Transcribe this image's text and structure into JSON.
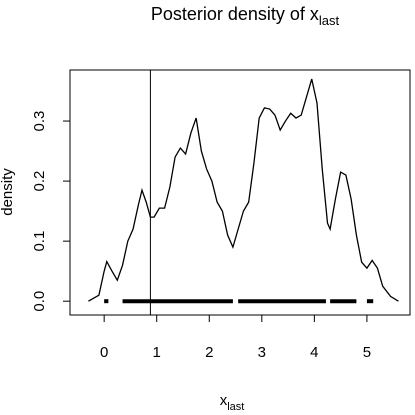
{
  "chart_data": {
    "type": "line",
    "title": "Posterior density of x",
    "title_subscript": "last",
    "xlabel": "x",
    "xlabel_subscript": "last",
    "ylabel": "density",
    "x": [
      -0.3,
      -0.1,
      0.0,
      0.05,
      0.15,
      0.25,
      0.35,
      0.45,
      0.55,
      0.65,
      0.72,
      0.8,
      0.88,
      0.95,
      1.05,
      1.15,
      1.25,
      1.35,
      1.45,
      1.55,
      1.65,
      1.75,
      1.85,
      1.95,
      2.05,
      2.15,
      2.25,
      2.35,
      2.45,
      2.55,
      2.65,
      2.75,
      2.85,
      2.95,
      3.05,
      3.15,
      3.25,
      3.35,
      3.45,
      3.55,
      3.65,
      3.75,
      3.85,
      3.95,
      4.05,
      4.15,
      4.25,
      4.3,
      4.4,
      4.5,
      4.6,
      4.7,
      4.8,
      4.9,
      5.0,
      5.1,
      5.2,
      5.3,
      5.45,
      5.6
    ],
    "values": [
      0.0,
      0.01,
      0.05,
      0.066,
      0.05,
      0.035,
      0.06,
      0.1,
      0.12,
      0.16,
      0.185,
      0.165,
      0.14,
      0.14,
      0.155,
      0.155,
      0.19,
      0.24,
      0.255,
      0.245,
      0.28,
      0.305,
      0.25,
      0.22,
      0.2,
      0.165,
      0.15,
      0.11,
      0.09,
      0.12,
      0.15,
      0.165,
      0.23,
      0.305,
      0.322,
      0.32,
      0.31,
      0.285,
      0.3,
      0.313,
      0.305,
      0.31,
      0.34,
      0.37,
      0.33,
      0.22,
      0.13,
      0.12,
      0.17,
      0.215,
      0.21,
      0.17,
      0.11,
      0.065,
      0.055,
      0.068,
      0.055,
      0.025,
      0.008,
      0.0
    ],
    "color": "#000000",
    "vline": 0.88,
    "rug_segments": [
      [
        0.0,
        0.08
      ],
      [
        0.35,
        2.45
      ],
      [
        2.55,
        4.22
      ],
      [
        4.3,
        4.8
      ],
      [
        5.0,
        5.12
      ]
    ],
    "xlim": [
      -0.65,
      5.82
    ],
    "ylim": [
      -0.023,
      0.385
    ],
    "xticks": [
      0,
      1,
      2,
      3,
      4,
      5
    ],
    "yticks": [
      {
        "value": 0,
        "label": "0.0"
      },
      {
        "value": 0.1,
        "label": "0.1"
      },
      {
        "value": 0.2,
        "label": "0.2"
      },
      {
        "value": 0.3,
        "label": "0.3"
      }
    ]
  }
}
